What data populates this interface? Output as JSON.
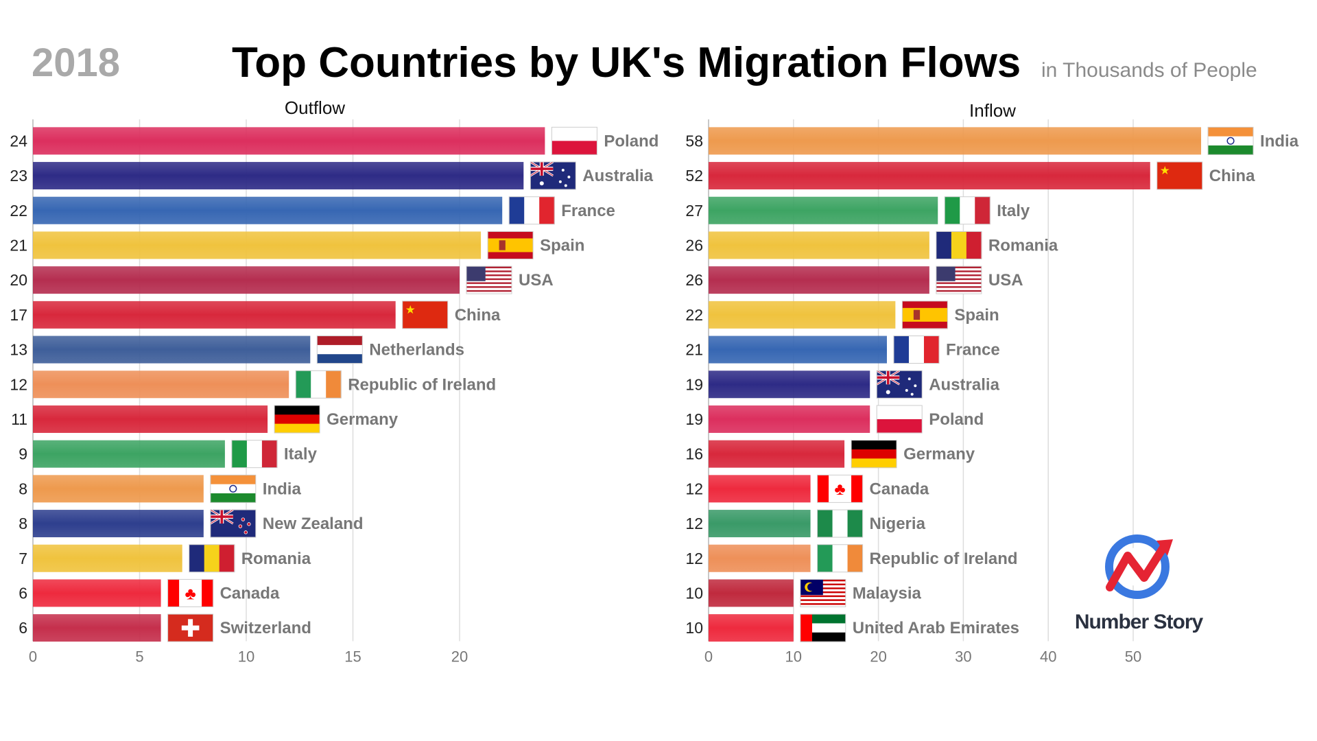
{
  "header": {
    "year": "2018",
    "title": "Top Countries by UK's Migration Flows",
    "subtitle": "in Thousands of People"
  },
  "brand": {
    "name": "Number Story",
    "icon": "chart-arrow-icon"
  },
  "chart_data": [
    {
      "type": "bar",
      "orientation": "horizontal",
      "title": "Outflow",
      "categories": [
        "Poland",
        "Australia",
        "France",
        "Spain",
        "USA",
        "China",
        "Netherlands",
        "Republic of Ireland",
        "Germany",
        "Italy",
        "India",
        "New Zealand",
        "Romania",
        "Canada",
        "Switzerland"
      ],
      "values": [
        24,
        23,
        22,
        21,
        20,
        17,
        13,
        12,
        11,
        9,
        8,
        8,
        7,
        6,
        6
      ],
      "colors": [
        "#dc2f5e",
        "#2e2b86",
        "#3767b3",
        "#f0c33e",
        "#b52e50",
        "#d8283c",
        "#3f5f9a",
        "#ee9059",
        "#d8283c",
        "#3da463",
        "#ee9a4e",
        "#2e3f8e",
        "#f0c33e",
        "#ee2a3e",
        "#c52f4c"
      ],
      "xlim": [
        0,
        25
      ],
      "xticks": [
        0,
        5,
        10,
        15,
        20
      ],
      "grid": true
    },
    {
      "type": "bar",
      "orientation": "horizontal",
      "title": "Inflow",
      "categories": [
        "India",
        "China",
        "Italy",
        "Romania",
        "USA",
        "Spain",
        "France",
        "Australia",
        "Poland",
        "Germany",
        "Canada",
        "Nigeria",
        "Republic of Ireland",
        "Malaysia",
        "United Arab Emirates"
      ],
      "values": [
        58,
        52,
        27,
        26,
        26,
        22,
        21,
        19,
        19,
        16,
        12,
        12,
        12,
        10,
        10
      ],
      "colors": [
        "#ee9a4e",
        "#d8283c",
        "#3da463",
        "#f0c33e",
        "#b52e50",
        "#f0c33e",
        "#3767b3",
        "#2e2b86",
        "#dc2f5e",
        "#d8283c",
        "#ee2a3e",
        "#3a9a68",
        "#ee9059",
        "#c02a3e",
        "#ee2a3e"
      ],
      "xlim": [
        0,
        58
      ],
      "xticks": [
        0,
        10,
        20,
        30,
        40,
        50
      ],
      "grid": true
    }
  ]
}
